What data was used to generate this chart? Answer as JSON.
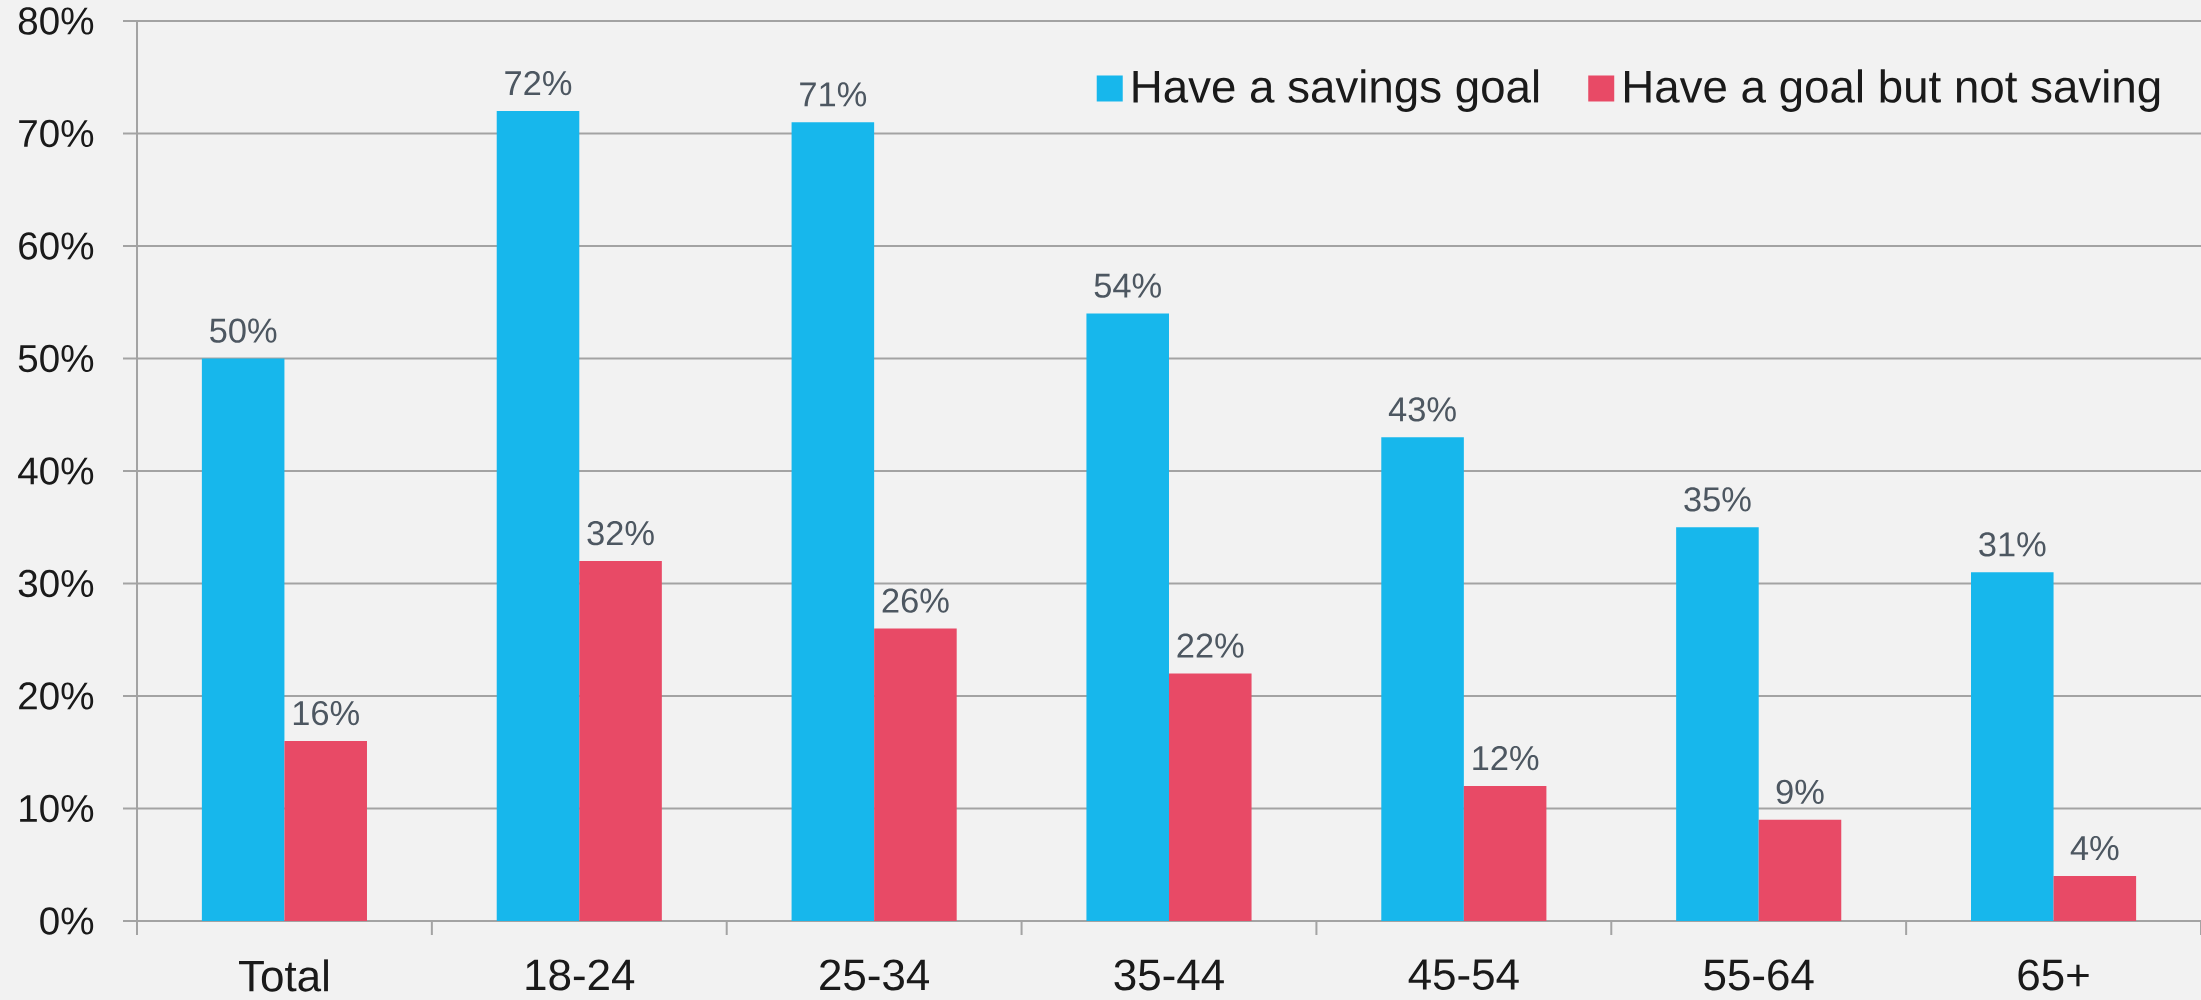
{
  "chart_data": {
    "type": "bar",
    "categories": [
      "Total",
      "18-24",
      "25-34",
      "35-44",
      "45-54",
      "55-64",
      "65+"
    ],
    "series": [
      {
        "name": "Have a savings goal",
        "color": "#17b7ec",
        "values": [
          50,
          72,
          71,
          54,
          43,
          35,
          31
        ],
        "value_labels": [
          "50%",
          "72%",
          "71%",
          "54%",
          "43%",
          "35%",
          "31%"
        ]
      },
      {
        "name": "Have a goal but not saving",
        "color": "#e84a66",
        "values": [
          16,
          32,
          26,
          22,
          12,
          9,
          4
        ],
        "value_labels": [
          "16%",
          "32%",
          "26%",
          "22%",
          "12%",
          "9%",
          "4%"
        ]
      }
    ],
    "ylim": [
      0,
      80
    ],
    "yticks": [
      {
        "value": 0,
        "label": "0%"
      },
      {
        "value": 10,
        "label": "10%"
      },
      {
        "value": 20,
        "label": "20%"
      },
      {
        "value": 30,
        "label": "30%"
      },
      {
        "value": 40,
        "label": "40%"
      },
      {
        "value": 50,
        "label": "50%"
      },
      {
        "value": 60,
        "label": "60%"
      },
      {
        "value": 70,
        "label": "70%"
      },
      {
        "value": 80,
        "label": "80%"
      }
    ],
    "grid": "y",
    "legend": "top right"
  }
}
